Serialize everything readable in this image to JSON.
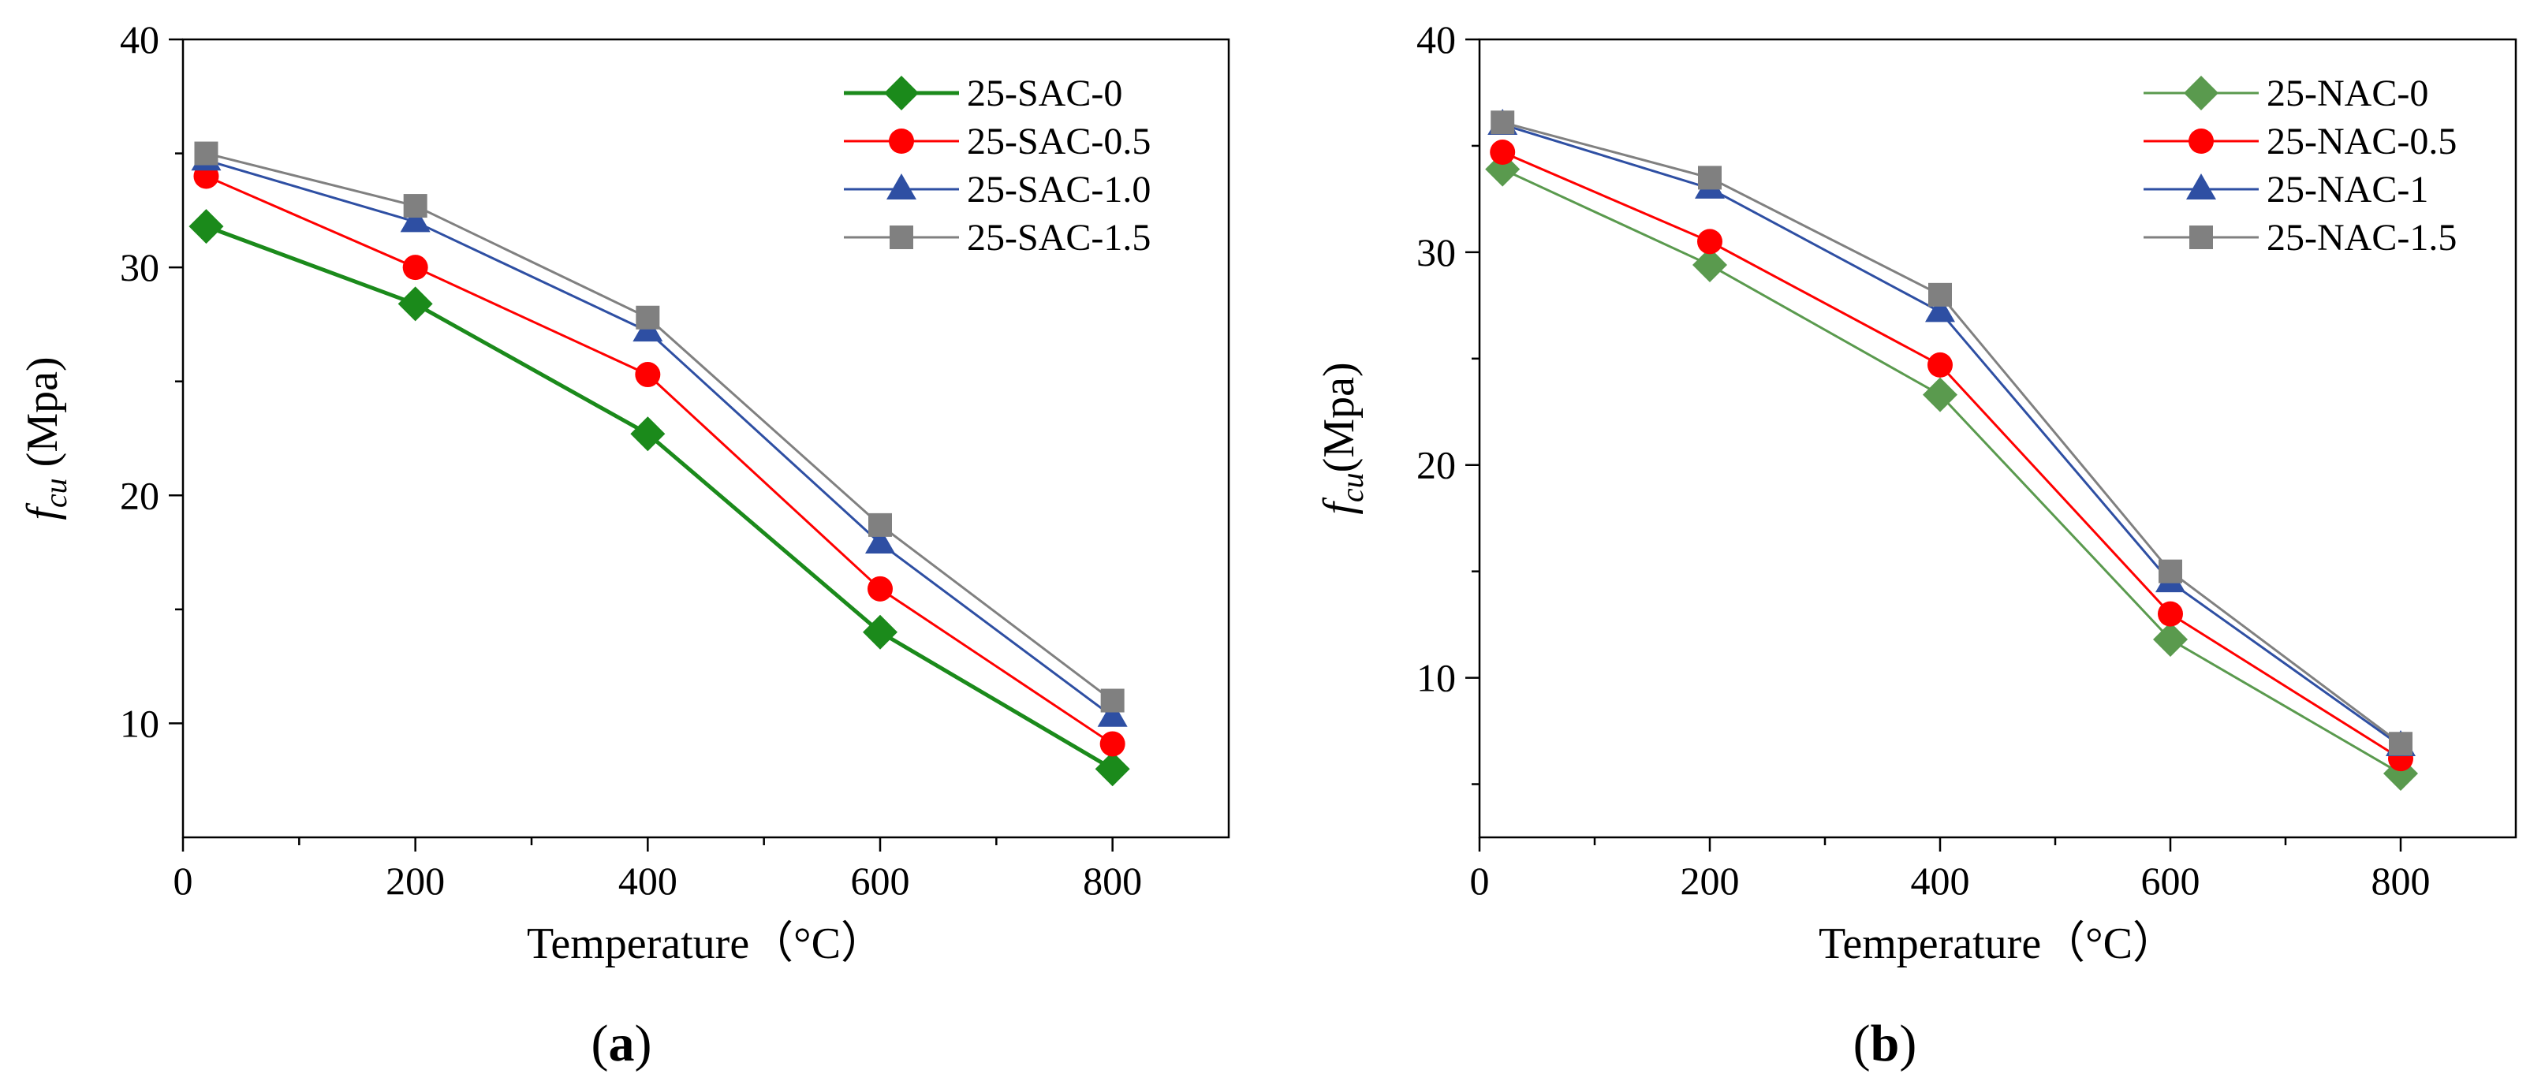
{
  "chart_data": [
    {
      "type": "line",
      "panel_label": "a",
      "title": "",
      "xlabel": "Temperature（°C）",
      "ylabel_base": "f",
      "ylabel_sub": "cu",
      "ylabel_unit": " (Mpa)",
      "xlim": [
        0,
        900
      ],
      "ylim": [
        5,
        40
      ],
      "xticks": [
        0,
        200,
        400,
        600,
        800
      ],
      "xminor": [
        100,
        300,
        500,
        700
      ],
      "yticks": [
        10,
        20,
        30,
        40
      ],
      "yminor": [
        15,
        25,
        35
      ],
      "grid": false,
      "legend_position": "top-right",
      "x": [
        20,
        200,
        400,
        600,
        800
      ],
      "series": [
        {
          "name": "25-SAC-0",
          "values": [
            31.8,
            28.4,
            22.7,
            14.0,
            8.0
          ],
          "color": "#1b8a1b",
          "marker": "diamond",
          "line_width": 5
        },
        {
          "name": "25-SAC-0.5",
          "values": [
            34.0,
            30.0,
            25.3,
            15.9,
            9.1
          ],
          "color": "#ff0000",
          "marker": "circle",
          "line_width": 3
        },
        {
          "name": "25-SAC-1.0",
          "values": [
            34.7,
            32.0,
            27.2,
            17.9,
            10.3
          ],
          "color": "#2e4fa3",
          "marker": "triangle",
          "line_width": 3
        },
        {
          "name": "25-SAC-1.5",
          "values": [
            35.0,
            32.7,
            27.8,
            18.7,
            11.0
          ],
          "color": "#808080",
          "marker": "square",
          "line_width": 3
        }
      ]
    },
    {
      "type": "line",
      "panel_label": "b",
      "title": "",
      "xlabel": "Temperature（°C）",
      "ylabel_base": "f",
      "ylabel_sub": "cu",
      "ylabel_unit": "(Mpa)",
      "xlim": [
        0,
        900
      ],
      "ylim": [
        2.5,
        40
      ],
      "xticks": [
        0,
        200,
        400,
        600,
        800
      ],
      "xminor": [
        100,
        300,
        500,
        700
      ],
      "yticks": [
        10,
        20,
        30,
        40
      ],
      "yminor": [
        5,
        15,
        25,
        35
      ],
      "grid": false,
      "legend_position": "top-right",
      "x": [
        20,
        200,
        400,
        600,
        800
      ],
      "series": [
        {
          "name": "25-NAC-0",
          "values": [
            33.9,
            29.4,
            23.3,
            11.8,
            5.5
          ],
          "color": "#5a9a4e",
          "marker": "diamond",
          "line_width": 3
        },
        {
          "name": "25-NAC-0.5",
          "values": [
            34.7,
            30.5,
            24.7,
            13.0,
            6.2
          ],
          "color": "#ff0000",
          "marker": "circle",
          "line_width": 3
        },
        {
          "name": "25-NAC-1",
          "values": [
            36.0,
            33.0,
            27.2,
            14.5,
            6.8
          ],
          "color": "#2e4fa3",
          "marker": "triangle",
          "line_width": 3
        },
        {
          "name": "25-NAC-1.5",
          "values": [
            36.1,
            33.5,
            28.0,
            15.0,
            6.9
          ],
          "color": "#808080",
          "marker": "square",
          "line_width": 3
        }
      ]
    }
  ]
}
